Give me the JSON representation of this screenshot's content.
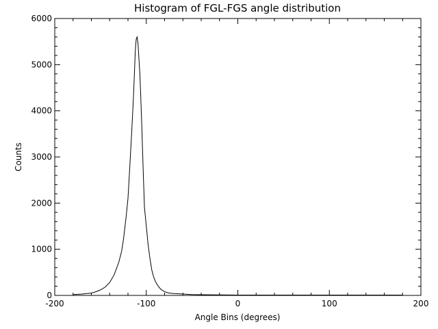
{
  "chart_data": {
    "type": "line",
    "title": "Histogram of FGL-FGS angle distribution",
    "xlabel": "Angle Bins (degrees)",
    "ylabel": "Counts",
    "xlim": [
      -200,
      200
    ],
    "ylim": [
      0,
      6000
    ],
    "x_ticks": [
      -200,
      -100,
      0,
      100,
      200
    ],
    "y_ticks": [
      0,
      1000,
      2000,
      3000,
      4000,
      5000,
      6000
    ],
    "grid": false,
    "legend": "none",
    "series": [
      {
        "color": "#000000",
        "x": [
          -180,
          -170,
          -160,
          -155,
          -150,
          -145,
          -140,
          -135,
          -130,
          -127,
          -125,
          -122,
          -120,
          -118,
          -116,
          -114,
          -113,
          -112,
          -111,
          -110,
          -109,
          -108,
          -107,
          -106,
          -105,
          -104,
          -103,
          -102,
          -100,
          -98,
          -96,
          -94,
          -92,
          -90,
          -87,
          -84,
          -80,
          -75,
          -70,
          -60,
          -50,
          -40,
          -20,
          0,
          50,
          100,
          150,
          180
        ],
        "y": [
          20,
          30,
          50,
          80,
          120,
          180,
          280,
          450,
          720,
          950,
          1200,
          1700,
          2100,
          2800,
          3500,
          4300,
          4800,
          5300,
          5550,
          5600,
          5450,
          5100,
          4800,
          4300,
          3700,
          3100,
          2500,
          1900,
          1500,
          1100,
          800,
          550,
          400,
          300,
          200,
          130,
          80,
          50,
          40,
          30,
          20,
          15,
          10,
          8,
          8,
          8,
          8,
          8
        ]
      }
    ]
  }
}
